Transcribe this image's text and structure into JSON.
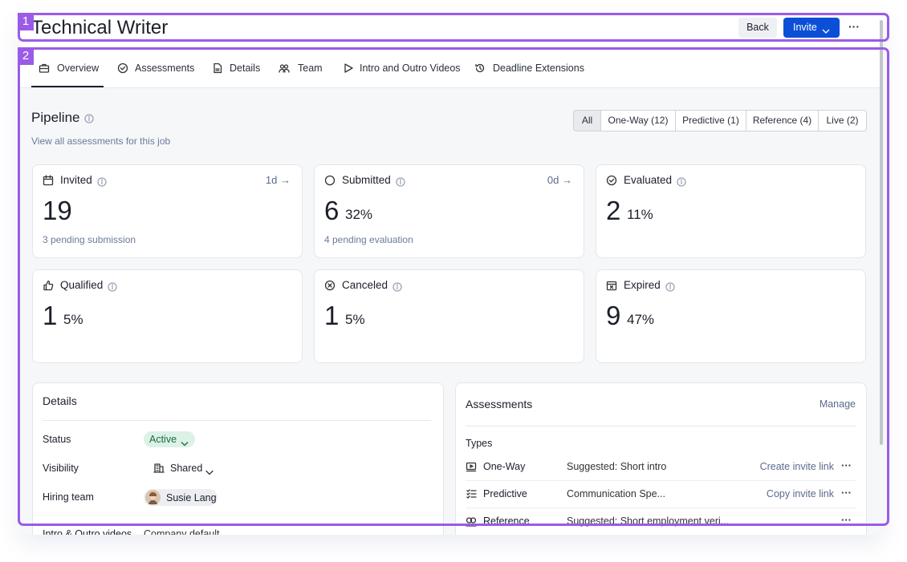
{
  "annotations": [
    "1",
    "2"
  ],
  "header": {
    "title": "Technical Writer",
    "back": "Back",
    "invite": "Invite",
    "more": "···"
  },
  "tabs": [
    "Overview",
    "Assessments",
    "Details",
    "Team",
    "Intro and Outro Videos",
    "Deadline Extensions"
  ],
  "pipeline": {
    "title": "Pipeline",
    "link": "View all assessments for this job",
    "filters": [
      "All",
      "One-Way (12)",
      "Predictive (1)",
      "Reference (4)",
      "Live (2)"
    ],
    "cards": [
      {
        "label": "Invited",
        "value": "19",
        "trend": "1d →",
        "sub": "3 pending submission"
      },
      {
        "label": "Submitted",
        "value": "6",
        "percent": "32%",
        "trend": "0d →",
        "sub": "4 pending evaluation"
      },
      {
        "label": "Evaluated",
        "value": "2",
        "percent": "11%"
      },
      {
        "label": "Qualified",
        "value": "1",
        "percent": "5%"
      },
      {
        "label": "Canceled",
        "value": "1",
        "percent": "5%"
      },
      {
        "label": "Expired",
        "value": "9",
        "percent": "47%"
      }
    ]
  },
  "details": {
    "title": "Details",
    "rows": [
      {
        "label": "Status",
        "value": "Active"
      },
      {
        "label": "Visibility",
        "value": "Shared"
      },
      {
        "label": "Hiring team",
        "value": "Susie Lang"
      },
      {
        "label": "Intro & Outro videos",
        "value": "Company default"
      }
    ]
  },
  "assessments": {
    "title": "Assessments",
    "manage": "Manage",
    "types_label": "Types",
    "rows": [
      {
        "name": "One-Way",
        "description": "Suggested: Short intro",
        "action": "Create invite link",
        "more": "···"
      },
      {
        "name": "Predictive",
        "description": "Communication Spe...",
        "action": "Copy invite link",
        "more": "···"
      },
      {
        "name": "Reference",
        "description": "Suggested: Short employment veri...",
        "more": "···"
      }
    ]
  }
}
